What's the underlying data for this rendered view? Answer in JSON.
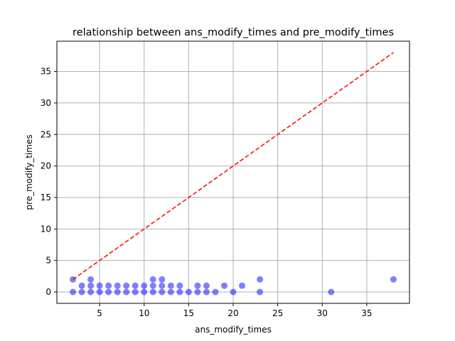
{
  "chart_data": {
    "type": "scatter",
    "title": "relationship between ans_modify_times and pre_modify_times",
    "xlabel": "ans_modify_times",
    "ylabel": "pre_modify_times",
    "xlim": [
      0.2,
      39.8
    ],
    "ylim": [
      -1.8,
      39.8
    ],
    "xticks": [
      5,
      10,
      15,
      20,
      25,
      30,
      35
    ],
    "yticks": [
      0,
      5,
      10,
      15,
      20,
      25,
      30,
      35
    ],
    "grid": true,
    "series": [
      {
        "marker_color": "#0000ff",
        "points": [
          [
            2,
            2
          ],
          [
            2,
            0
          ],
          [
            3,
            0
          ],
          [
            3,
            1
          ],
          [
            4,
            0
          ],
          [
            4,
            1
          ],
          [
            4,
            2
          ],
          [
            5,
            0
          ],
          [
            5,
            1
          ],
          [
            6,
            0
          ],
          [
            6,
            1
          ],
          [
            7,
            0
          ],
          [
            7,
            1
          ],
          [
            8,
            0
          ],
          [
            8,
            1
          ],
          [
            9,
            0
          ],
          [
            9,
            1
          ],
          [
            10,
            0
          ],
          [
            10,
            1
          ],
          [
            11,
            0
          ],
          [
            11,
            1
          ],
          [
            11,
            2
          ],
          [
            12,
            0
          ],
          [
            12,
            1
          ],
          [
            12,
            2
          ],
          [
            13,
            0
          ],
          [
            13,
            1
          ],
          [
            14,
            0
          ],
          [
            14,
            1
          ],
          [
            15,
            0
          ],
          [
            16,
            0
          ],
          [
            16,
            1
          ],
          [
            17,
            0
          ],
          [
            17,
            1
          ],
          [
            18,
            0
          ],
          [
            19,
            1
          ],
          [
            20,
            0
          ],
          [
            21,
            1
          ],
          [
            23,
            0
          ],
          [
            23,
            2
          ],
          [
            31,
            0
          ],
          [
            38,
            2
          ]
        ]
      }
    ],
    "reference_line": {
      "style": "dashed",
      "color": "#ff0000",
      "x": [
        2,
        38
      ],
      "y": [
        2,
        38
      ]
    }
  }
}
